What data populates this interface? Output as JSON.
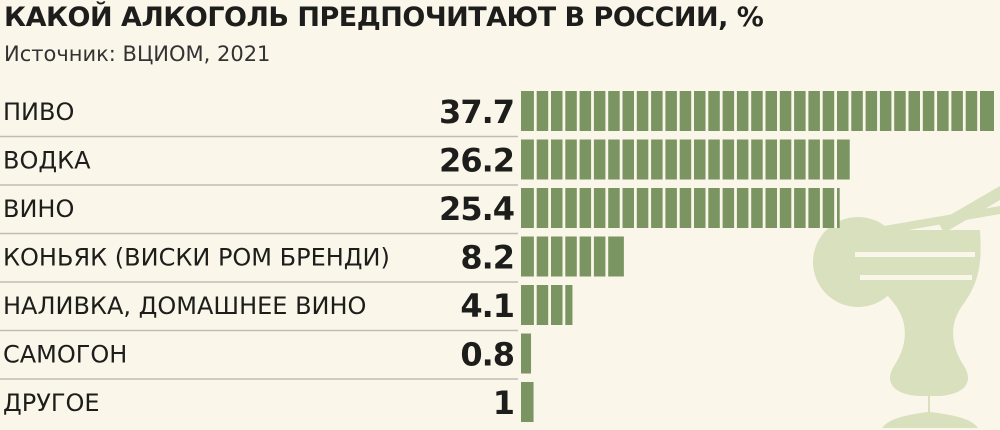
{
  "title": "КАКОЙ АЛКОГОЛЬ ПРЕДПОЧИТАЮТ В РОССИИ, %",
  "subtitle": "Источник: ВЦИОМ, 2021",
  "colors": {
    "bar": "#7a9462",
    "bar_stripe": "#fbf6ea",
    "divider": "#bdbdb5",
    "illustration": "#d9e0be",
    "background": "#fbf6ea"
  },
  "chart_data": {
    "type": "bar",
    "orientation": "horizontal",
    "title": "КАКОЙ АЛКОГОЛЬ ПРЕДПОЧИТАЮТ В РОССИИ, %",
    "subtitle": "Источник: ВЦИОМ, 2021",
    "categories": [
      "ПИВО",
      "ВОДКА",
      "ВИНО",
      "КОНЬЯК (ВИСКИ РОМ БРЕНДИ)",
      "НАЛИВКА, ДОМАШНЕЕ ВИНО",
      "САМОГОН",
      "ДРУГОЕ"
    ],
    "values": [
      37.7,
      26.2,
      25.4,
      8.2,
      4.1,
      0.8,
      1
    ],
    "value_labels": [
      "37.7",
      "26.2",
      "25.4",
      "8.2",
      "4.1",
      "0.8",
      "1"
    ],
    "xlim": [
      0,
      37.7
    ],
    "grid": false,
    "legend": "none"
  }
}
